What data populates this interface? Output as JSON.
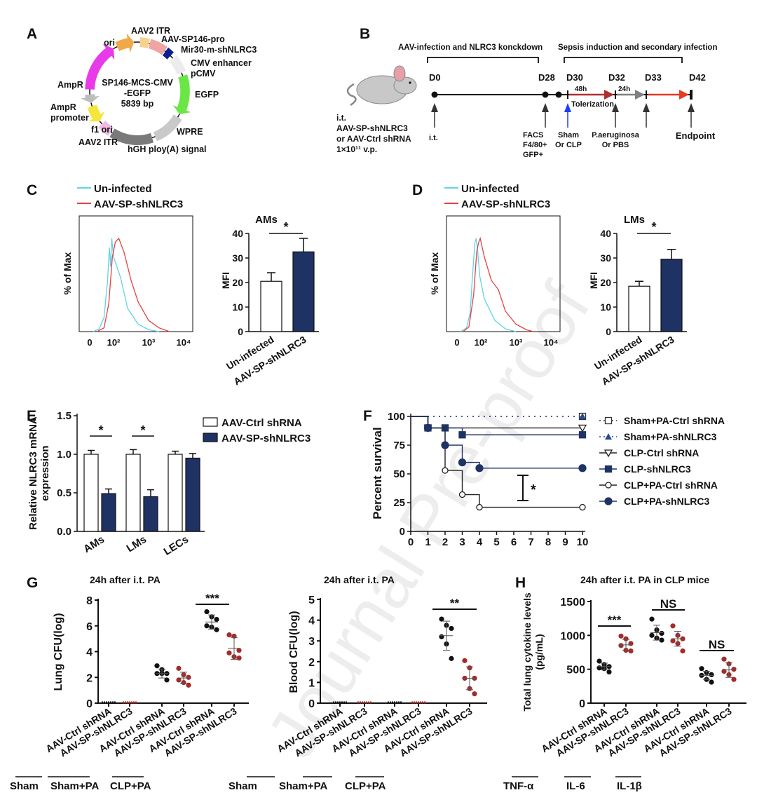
{
  "watermark": "Journal Pre-proof",
  "panel_letters": [
    "A",
    "B",
    "C",
    "D",
    "E",
    "F",
    "G",
    "H"
  ],
  "panel_a": {
    "center_lines": [
      "SP146-MCS-CMV",
      "-EGFP",
      "5839 bp"
    ],
    "features": [
      {
        "label": "AAV2 ITR",
        "color": "#f5d28e"
      },
      {
        "label": "AAV-SP146-pro",
        "color": "#f0a4a4",
        "text_color": "#e53935"
      },
      {
        "label": "Mir30-m-shNLRC3",
        "color": "#0b1f8f",
        "text_color": "#1a2ee0"
      },
      {
        "label": "CMV enhancer",
        "color": "#ececec"
      },
      {
        "label": "pCMV",
        "color": "#ececec"
      },
      {
        "label": "EGFP",
        "color": "#6ae645"
      },
      {
        "label": "WPRE",
        "color": "#c9c9c9"
      },
      {
        "label": "hGH ploy(A) signal",
        "color": "#7a7a7a"
      },
      {
        "label": "AAV2 ITR",
        "color": "#f2b9e4"
      },
      {
        "label": "f1 ori",
        "color": "#f5e63c"
      },
      {
        "label": "AmpR promoter",
        "color": "#bdbdbd"
      },
      {
        "label": "AmpR",
        "color": "#e83ae8"
      },
      {
        "label": "ori",
        "color": "#f0a94a"
      }
    ]
  },
  "panel_b": {
    "phase1": "AAV-infection and NLRC3 konckdown",
    "phase2": "Sepsis induction and secondary infection",
    "days": [
      "D0",
      "D28",
      "D30",
      "D32",
      "D33",
      "D42"
    ],
    "interval1": "48h",
    "interval2": "24h",
    "tolerization": "Tolerization",
    "injection_lines": [
      "i.t.",
      "AAV-SP-shNLRC3",
      "or AAV-Ctrl shRNA",
      "1×10¹¹ v.p."
    ],
    "events": {
      "d0": [
        "i.t."
      ],
      "d28": [
        "FACS",
        "F4/80+",
        "GFP+"
      ],
      "d30": [
        "Sham",
        "Or CLP"
      ],
      "d32": [
        "P.aeruginosa",
        "Or PBS"
      ],
      "d42": [
        "Endpoint"
      ]
    },
    "colors": {
      "arrow1": "#b03030",
      "arrow2": "#808080",
      "arrow3": "#e83a22",
      "blue": "#1e3cff"
    }
  },
  "chart_data": [
    {
      "id": "C-hist",
      "type": "line",
      "ylabel": "% of Max",
      "xticks": [
        "0",
        "10²",
        "10³",
        "10⁴"
      ],
      "legend": [
        "Un-infected",
        "AAV-SP-shNLRC3"
      ],
      "series": [
        {
          "name": "Un-infected",
          "color": "#5fd3ea",
          "points": [
            [
              0.3,
              0
            ],
            [
              0.8,
              3
            ],
            [
              1.2,
              15
            ],
            [
              1.5,
              55
            ],
            [
              1.65,
              90
            ],
            [
              1.75,
              70
            ],
            [
              1.85,
              100
            ],
            [
              2.0,
              80
            ],
            [
              2.2,
              58
            ],
            [
              2.4,
              25
            ],
            [
              2.7,
              8
            ],
            [
              3.0,
              2
            ],
            [
              3.3,
              0
            ]
          ]
        },
        {
          "name": "AAV-SP-shNLRC3",
          "color": "#e84040",
          "points": [
            [
              0.6,
              0
            ],
            [
              1.2,
              4
            ],
            [
              1.6,
              30
            ],
            [
              1.9,
              80
            ],
            [
              2.05,
              96
            ],
            [
              2.15,
              100
            ],
            [
              2.3,
              85
            ],
            [
              2.5,
              55
            ],
            [
              2.7,
              32
            ],
            [
              3.0,
              12
            ],
            [
              3.3,
              4
            ],
            [
              3.6,
              0
            ]
          ]
        }
      ]
    },
    {
      "id": "C-bar",
      "type": "bar",
      "title": "AMs",
      "ylabel": "MFI",
      "ylim": [
        0,
        40
      ],
      "yticks": [
        0,
        10,
        20,
        30,
        40
      ],
      "categories": [
        "Un-infected",
        "AAV-SP-shNLRC3"
      ],
      "values": [
        20.5,
        32.5
      ],
      "errors": [
        3.5,
        5.5
      ],
      "colors": [
        "#ffffff",
        "#1f3264"
      ],
      "significance": "*"
    },
    {
      "id": "D-hist",
      "type": "line",
      "ylabel": "% of Max",
      "xticks": [
        "0",
        "10²",
        "10³",
        "10⁴"
      ],
      "legend": [
        "Un-infected",
        "AAV-SP-shNLRC3"
      ],
      "series": [
        {
          "name": "Un-infected",
          "color": "#5fd3ea",
          "points": [
            [
              0.3,
              0
            ],
            [
              0.8,
              4
            ],
            [
              1.1,
              20
            ],
            [
              1.3,
              60
            ],
            [
              1.5,
              95
            ],
            [
              1.6,
              100
            ],
            [
              1.75,
              85
            ],
            [
              1.9,
              60
            ],
            [
              2.1,
              35
            ],
            [
              2.4,
              12
            ],
            [
              2.7,
              3
            ],
            [
              3.0,
              0
            ]
          ]
        },
        {
          "name": "AAV-SP-shNLRC3",
          "color": "#e84040",
          "points": [
            [
              0.5,
              0
            ],
            [
              1.0,
              5
            ],
            [
              1.4,
              40
            ],
            [
              1.65,
              85
            ],
            [
              1.8,
              95
            ],
            [
              1.95,
              100
            ],
            [
              2.1,
              80
            ],
            [
              2.3,
              55
            ],
            [
              2.5,
              45
            ],
            [
              2.7,
              22
            ],
            [
              3.0,
              8
            ],
            [
              3.3,
              2
            ],
            [
              3.5,
              0
            ]
          ]
        }
      ]
    },
    {
      "id": "D-bar",
      "type": "bar",
      "title": "LMs",
      "ylabel": "MFI",
      "ylim": [
        0,
        40
      ],
      "yticks": [
        0,
        10,
        20,
        30,
        40
      ],
      "categories": [
        "Un-infected",
        "AAV-SP-shNLRC3"
      ],
      "values": [
        18.5,
        29.5
      ],
      "errors": [
        2,
        4
      ],
      "colors": [
        "#ffffff",
        "#1f3264"
      ],
      "significance": "*"
    },
    {
      "id": "E",
      "type": "bar",
      "ylabel": [
        "Relative NLRC3 mRNA",
        "expression"
      ],
      "ylim": [
        0,
        1.5
      ],
      "yticks": [
        "0.0",
        "0.5",
        "1.0",
        "1.5"
      ],
      "categories": [
        "AMs",
        "LMs",
        "LECs"
      ],
      "series": [
        {
          "name": "AAV-Ctrl shRNA",
          "color": "#ffffff",
          "values": [
            1.0,
            1.0,
            1.0
          ],
          "errors": [
            0.05,
            0.06,
            0.04
          ]
        },
        {
          "name": "AAV-SP-shNLRC3",
          "color": "#1f3264",
          "values": [
            0.49,
            0.45,
            0.95
          ],
          "errors": [
            0.06,
            0.09,
            0.06
          ]
        }
      ],
      "significance": [
        "*",
        "*",
        ""
      ]
    },
    {
      "id": "F",
      "type": "line",
      "ylabel": "Percent survival",
      "ylim": [
        0,
        100
      ],
      "xlim": [
        0,
        10
      ],
      "yticks": [
        0,
        25,
        50,
        75,
        100
      ],
      "xticks": [
        0,
        1,
        2,
        3,
        4,
        5,
        6,
        7,
        8,
        9,
        10
      ],
      "series": [
        {
          "name": "Sham+PA-Ctrl shRNA",
          "marker": "square-open",
          "dash": true,
          "color": "#333333",
          "steps": [
            [
              0,
              100
            ],
            [
              10,
              100
            ]
          ]
        },
        {
          "name": "Sham+PA-shNLRC3",
          "marker": "triangle",
          "dash": true,
          "color": "#2b4a8c",
          "steps": [
            [
              0,
              100
            ],
            [
              10,
              100
            ]
          ]
        },
        {
          "name": "CLP-Ctrl shRNA",
          "marker": "triangle-down-open",
          "color": "#222222",
          "steps": [
            [
              0,
              100
            ],
            [
              1,
              90
            ],
            [
              10,
              90
            ]
          ]
        },
        {
          "name": "CLP-shNLRC3",
          "marker": "square",
          "color": "#1f3264",
          "steps": [
            [
              0,
              100
            ],
            [
              1,
              90
            ],
            [
              2,
              90
            ],
            [
              3,
              84
            ],
            [
              10,
              84
            ]
          ]
        },
        {
          "name": "CLP+PA-Ctrl shRNA",
          "marker": "circle-open",
          "color": "#222222",
          "steps": [
            [
              0,
              100
            ],
            [
              1,
              90
            ],
            [
              2,
              53
            ],
            [
              3,
              32
            ],
            [
              4,
              21
            ],
            [
              10,
              21
            ]
          ]
        },
        {
          "name": "CLP+PA-shNLRC3",
          "marker": "circle",
          "color": "#1f3264",
          "steps": [
            [
              0,
              100
            ],
            [
              1,
              90
            ],
            [
              2,
              75
            ],
            [
              3,
              60
            ],
            [
              4,
              55
            ],
            [
              10,
              55
            ]
          ]
        }
      ],
      "significance": "*"
    },
    {
      "id": "G-lung",
      "type": "scatter",
      "title": "24h after i.t. PA",
      "ylabel": "Lung CFU(log)",
      "ylim": [
        0,
        8
      ],
      "yticks": [
        0,
        2,
        4,
        6,
        8
      ],
      "categories": [
        "AAV-Ctrl shRNA",
        "AAV-SP-shNLRC3",
        "AAV-Ctrl shRNA",
        "AAV-SP-shNLRC3",
        "AAV-Ctrl shRNA",
        "AAV-SP-shNLRC3"
      ],
      "groups": [
        "Sham",
        "Sham+PA",
        "CLP+PA"
      ],
      "points": [
        [
          0,
          0,
          0,
          0,
          0,
          0
        ],
        [
          0,
          0,
          0,
          0,
          0,
          0
        ],
        [
          2.9,
          2.6,
          2.3,
          2.3,
          2.3,
          1.8
        ],
        [
          2.7,
          2.2,
          2.0,
          1.8,
          1.6,
          1.4
        ],
        [
          7.1,
          6.7,
          6.5,
          6.0,
          5.9,
          5.7
        ],
        [
          5.3,
          5.2,
          4.1,
          3.9,
          3.6,
          3.5
        ]
      ],
      "means": [
        0,
        0,
        2.3,
        1.95,
        6.3,
        4.25
      ],
      "sd": [
        0,
        0,
        0.35,
        0.45,
        0.55,
        0.85
      ],
      "colors": [
        "#111111",
        "#a52a2a"
      ],
      "significance": "***"
    },
    {
      "id": "G-blood",
      "type": "scatter",
      "title": "24h after i.t. PA",
      "ylabel": "Blood CFU(log)",
      "ylim": [
        0,
        5
      ],
      "yticks": [
        0,
        1,
        2,
        3,
        4,
        5
      ],
      "categories": [
        "AAV-Ctrl shRNA",
        "AAV-SP-shNLRC3",
        "AAV-Ctrl shRNA",
        "AAV-SP-shNLRC3",
        "AAV-Ctrl shRNA",
        "AAV-SP-shNLRC3"
      ],
      "groups": [
        "Sham",
        "Sham+PA",
        "CLP+PA"
      ],
      "points": [
        [
          0,
          0,
          0,
          0,
          0,
          0
        ],
        [
          0,
          0,
          0,
          0,
          0,
          0
        ],
        [
          0,
          0,
          0,
          0,
          0,
          0
        ],
        [
          0,
          0,
          0,
          0,
          0,
          0
        ],
        [
          4.05,
          3.75,
          3.6,
          3.2,
          2.85,
          2.15
        ],
        [
          2.05,
          1.7,
          1.2,
          1.2,
          0.7,
          0.45
        ]
      ],
      "means": [
        0,
        0,
        0,
        0,
        3.25,
        1.2
      ],
      "sd": [
        0,
        0,
        0,
        0,
        0.7,
        0.55
      ],
      "colors": [
        "#111111",
        "#a52a2a"
      ],
      "significance": "**"
    },
    {
      "id": "H",
      "type": "scatter",
      "title": "24h after i.t. PA in CLP mice",
      "ylabel": [
        "Total lung cytokine levels",
        "(pg/mL)"
      ],
      "ylim": [
        0,
        1500
      ],
      "yticks": [
        0,
        500,
        1000,
        1500
      ],
      "categories": [
        "AAV-Ctrl shRNA",
        "AAV-SP-shNLRC3",
        "AAV-Ctrl shRNA",
        "AAV-SP-shNLRC3",
        "AAV-Ctrl shRNA",
        "AAV-SP-shNLRC3"
      ],
      "groups": [
        "TNF-α",
        "IL-6",
        "IL-1β"
      ],
      "points": [
        [
          620,
          570,
          540,
          520,
          510,
          460
        ],
        [
          990,
          950,
          880,
          850,
          780,
          770
        ],
        [
          1240,
          1080,
          1030,
          1000,
          960,
          930
        ],
        [
          1140,
          1000,
          950,
          920,
          880,
          770
        ],
        [
          510,
          450,
          420,
          410,
          350,
          310
        ],
        [
          650,
          580,
          500,
          470,
          420,
          350
        ]
      ],
      "means": [
        540,
        860,
        1040,
        950,
        410,
        490
      ],
      "sd": [
        50,
        80,
        110,
        110,
        60,
        110
      ],
      "colors": [
        "#111111",
        "#a52a2a"
      ],
      "significance": [
        "***",
        "NS",
        "NS"
      ]
    }
  ]
}
